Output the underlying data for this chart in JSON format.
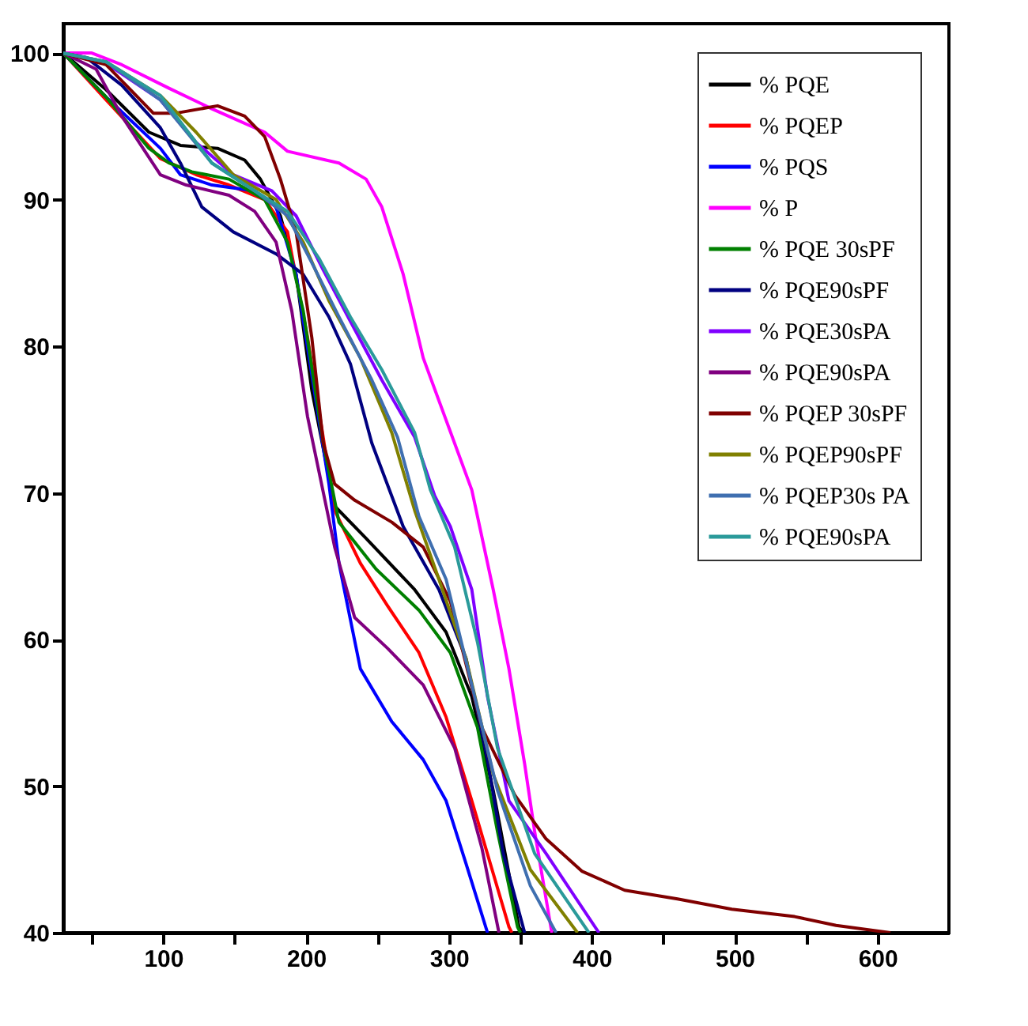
{
  "chart_data": {
    "type": "line",
    "xlim": [
      30,
      650
    ],
    "ylim": [
      40,
      102
    ],
    "xticks": [
      {
        "value": 50,
        "label": null
      },
      100,
      {
        "value": 150,
        "label": null
      },
      200,
      {
        "value": 250,
        "label": null
      },
      300,
      {
        "value": 350,
        "label": null
      },
      400,
      {
        "value": 450,
        "label": null
      },
      500,
      {
        "value": 550,
        "label": null
      },
      600
    ],
    "yticks": [
      40,
      50,
      60,
      70,
      80,
      90,
      100
    ],
    "grid": false,
    "legend": "top right",
    "marker": "none",
    "line_style": "solid",
    "series": [
      {
        "name": "% PQE",
        "color": "#000000",
        "x": [
          30,
          60,
          90,
          112,
          138,
          157,
          168,
          182,
          193,
          204,
          220,
          242,
          276,
          298,
          316,
          331,
          349,
          352
        ],
        "values": [
          100,
          97.5,
          94.6,
          93.7,
          93.5,
          92.7,
          91.4,
          88.9,
          84.9,
          77,
          69.1,
          66.9,
          63.4,
          60.5,
          56.1,
          49.7,
          40.4,
          40
        ]
      },
      {
        "name": "% PQEP",
        "color": "#ff0000",
        "x": [
          30,
          60,
          98,
          123,
          146,
          171,
          187,
          201,
          220,
          238,
          257,
          279,
          298,
          316,
          342,
          344
        ],
        "values": [
          100,
          96.8,
          92.8,
          91.7,
          91,
          90,
          87.8,
          80.6,
          68.8,
          65.2,
          62.3,
          59.1,
          54.7,
          49,
          40.4,
          40
        ]
      },
      {
        "name": "% PQS",
        "color": "#0000ff",
        "x": [
          30,
          60,
          98,
          112,
          134,
          164,
          179,
          193,
          216,
          223,
          238,
          260,
          282,
          298,
          312,
          327
        ],
        "values": [
          100,
          97,
          93.5,
          91.7,
          91,
          90.6,
          89.5,
          84.9,
          70.6,
          65.2,
          58,
          54.4,
          51.8,
          49,
          44.7,
          40
        ]
      },
      {
        "name": "% P",
        "color": "#ff00ff",
        "x": [
          30,
          50,
          71,
          104,
          134,
          171,
          187,
          223,
          242,
          253,
          268,
          282,
          316,
          331,
          342,
          353,
          360,
          372
        ],
        "values": [
          100,
          100,
          99.2,
          97.6,
          96.2,
          94.6,
          93.3,
          92.5,
          91.4,
          89.5,
          84.9,
          79.2,
          70.2,
          63.4,
          58,
          51.5,
          46.9,
          40
        ]
      },
      {
        "name": "% PQE 30sPF",
        "color": "#008000",
        "x": [
          30,
          60,
          90,
          104,
          120,
          146,
          171,
          187,
          198,
          212,
          223,
          249,
          279,
          301,
          320,
          334,
          348,
          350
        ],
        "values": [
          100,
          97,
          93.5,
          92.5,
          91.9,
          91.4,
          90,
          87.1,
          82.4,
          73.4,
          68,
          64.8,
          62,
          59.1,
          54,
          46.9,
          40.4,
          40
        ]
      },
      {
        "name": "% PQE90sPF",
        "color": "#000080",
        "x": [
          30,
          46,
          71,
          98,
          112,
          127,
          149,
          179,
          198,
          216,
          231,
          246,
          268,
          293,
          312,
          327,
          338,
          353
        ],
        "values": [
          100,
          99.7,
          97.8,
          94.9,
          92.5,
          89.5,
          87.8,
          86.3,
          84.9,
          82,
          78.8,
          73.4,
          67.7,
          63.4,
          58.7,
          51.8,
          45.4,
          40
        ]
      },
      {
        "name": "% PQE30sPA",
        "color": "#8000ff",
        "x": [
          30,
          60,
          98,
          123,
          149,
          176,
          193,
          212,
          231,
          253,
          276,
          290,
          301,
          316,
          327,
          342,
          368,
          405
        ],
        "values": [
          100,
          99.3,
          96.8,
          93.9,
          91.7,
          90.6,
          88.9,
          85.2,
          81.7,
          77.7,
          73.8,
          69.8,
          67.7,
          63.4,
          56.1,
          49,
          45.4,
          40
        ]
      },
      {
        "name": "% PQE90sPA",
        "color": "#800080",
        "x": [
          30,
          53,
          71,
          98,
          116,
          146,
          164,
          179,
          190,
          201,
          220,
          234,
          257,
          282,
          304,
          323,
          335
        ],
        "values": [
          100,
          98.9,
          95.7,
          91.7,
          91,
          90.3,
          89.2,
          87.1,
          82.4,
          75.2,
          66.3,
          61.5,
          59.4,
          56.9,
          52.6,
          45.8,
          40
        ]
      },
      {
        "name": "% PQEP 30sPF",
        "color": "#800000",
        "x": [
          30,
          60,
          93,
          109,
          138,
          157,
          171,
          182,
          193,
          204,
          212,
          220,
          234,
          260,
          282,
          301,
          323,
          346,
          368,
          393,
          423,
          460,
          498,
          542,
          571,
          609
        ],
        "values": [
          100,
          99.2,
          95.9,
          95.9,
          96.4,
          95.7,
          94.3,
          91.4,
          87.8,
          80.6,
          73.4,
          70.6,
          69.5,
          68,
          66.3,
          62.6,
          54,
          49.4,
          46.4,
          44.2,
          42.9,
          42.3,
          41.6,
          41.1,
          40.5,
          40
        ]
      },
      {
        "name": "% PQEP90sPF",
        "color": "#808000",
        "x": [
          30,
          60,
          98,
          123,
          149,
          179,
          198,
          216,
          238,
          260,
          276,
          293,
          312,
          331,
          357,
          390
        ],
        "values": [
          100,
          99.4,
          97.1,
          94.6,
          91.7,
          90,
          87.1,
          83.1,
          79.2,
          74.1,
          68.8,
          64.1,
          58.7,
          50.8,
          44.3,
          40
        ]
      },
      {
        "name": "% PQEP30s PA",
        "color": "#3f6fb0",
        "x": [
          30,
          60,
          98,
          134,
          164,
          187,
          204,
          223,
          246,
          264,
          279,
          298,
          316,
          334,
          357,
          375
        ],
        "values": [
          100,
          99.4,
          96.8,
          92.5,
          90.6,
          88.9,
          85.7,
          82,
          77.7,
          73.8,
          68.4,
          64.1,
          56.9,
          49.7,
          43.2,
          40
        ]
      },
      {
        "name": "% PQE90sPA",
        "color": "#2a9a9a",
        "x": [
          30,
          60,
          98,
          134,
          164,
          187,
          209,
          231,
          253,
          276,
          287,
          304,
          320,
          334,
          360,
          398
        ],
        "values": [
          100,
          99.4,
          97.1,
          92.5,
          90.6,
          89.2,
          86,
          82,
          78.4,
          74.1,
          70.2,
          66.3,
          59.8,
          52.6,
          45.4,
          40
        ]
      }
    ]
  }
}
